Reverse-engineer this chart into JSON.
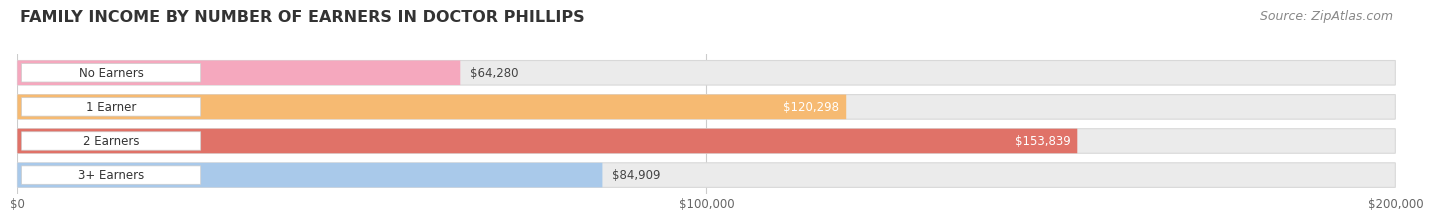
{
  "title": "FAMILY INCOME BY NUMBER OF EARNERS IN DOCTOR PHILLIPS",
  "source": "Source: ZipAtlas.com",
  "categories": [
    "No Earners",
    "1 Earner",
    "2 Earners",
    "3+ Earners"
  ],
  "values": [
    64280,
    120298,
    153839,
    84909
  ],
  "bar_colors": [
    "#F5A8BE",
    "#F6BA72",
    "#E07268",
    "#A9C9EA"
  ],
  "label_colors": [
    "#555555",
    "#ffffff",
    "#ffffff",
    "#555555"
  ],
  "bar_bg_color": "#E8E8E8",
  "xlim": [
    0,
    200000
  ],
  "xticks": [
    0,
    100000,
    200000
  ],
  "xtick_labels": [
    "$0",
    "$100,000",
    "$200,000"
  ],
  "title_fontsize": 11.5,
  "source_fontsize": 9,
  "bar_height": 0.72,
  "background_color": "#ffffff",
  "value_labels": [
    "$64,280",
    "$120,298",
    "$153,839",
    "$84,909"
  ],
  "value_label_threshold": 0.55
}
